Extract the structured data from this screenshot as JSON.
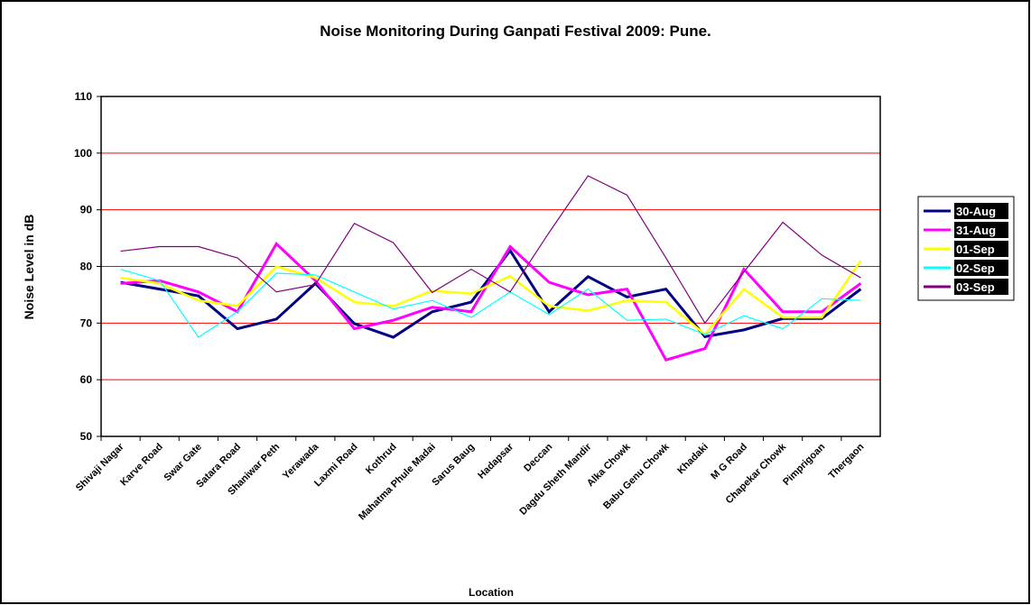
{
  "chart_data": {
    "type": "line",
    "title": "Noise Monitoring During Ganpati Festival 2009: Pune.",
    "y_label": "Noise Level in dB",
    "x_label": "Location",
    "categories": [
      "Shivaji Nagar",
      "Karve Road",
      "Swar Gate",
      "Satara Road",
      "Shaniwar Peth",
      "Yerawada",
      "Laxmi Road",
      "Kothrud",
      "Mahatma Phule Madai",
      "Sarus Baug",
      "Hadapsar",
      "Deccan",
      "Dagdu Sheth Mandir",
      "Alka Chowk",
      "Babu Genu Chowk",
      "Khadaki",
      "M G Road",
      "Chapekar Chowk",
      "Pimprigoan",
      "Thergaon"
    ],
    "series": [
      {
        "name": "30-Aug",
        "color": "#000080",
        "values": [
          77.2,
          76,
          74.8,
          69,
          70.7,
          77,
          69.9,
          67.5,
          72,
          73.7,
          82.8,
          72,
          78.2,
          74.6,
          76,
          67.6,
          68.8,
          70.8,
          70.8,
          76
        ]
      },
      {
        "name": "31-Aug",
        "color": "#ff00ff",
        "values": [
          77,
          77.5,
          75.5,
          72,
          84,
          77.5,
          69,
          70.5,
          72.8,
          72,
          83.5,
          77.2,
          75,
          76,
          63.5,
          65.5,
          79.5,
          72,
          72,
          77
        ]
      },
      {
        "name": "01-Sep",
        "color": "#ffff00",
        "values": [
          78,
          77,
          74,
          73,
          80,
          78,
          73.7,
          73,
          75.7,
          75.2,
          78.3,
          73,
          72.2,
          74,
          73.7,
          68,
          76,
          71,
          71,
          81
        ]
      },
      {
        "name": "02-Sep",
        "color": "#00ffff",
        "values": [
          79.5,
          77.5,
          67.5,
          72,
          78.8,
          78.5,
          75.5,
          72.5,
          74,
          71,
          75.5,
          71.5,
          76,
          70.5,
          70.7,
          68,
          71.3,
          69,
          74.3,
          74
        ]
      },
      {
        "name": "03-Sep",
        "color": "#800080",
        "values": [
          82.7,
          83.5,
          83.5,
          81.5,
          75.5,
          76.8,
          87.6,
          84.2,
          75.4,
          79.5,
          75.5,
          86,
          96,
          92.6,
          81.5,
          70,
          79,
          87.8,
          82,
          78
        ]
      }
    ],
    "ylim": [
      50,
      110
    ],
    "yticks": [
      50,
      60,
      70,
      80,
      90,
      100,
      110
    ],
    "grid": true,
    "grid_color": "#ff0000",
    "legend": "right"
  }
}
